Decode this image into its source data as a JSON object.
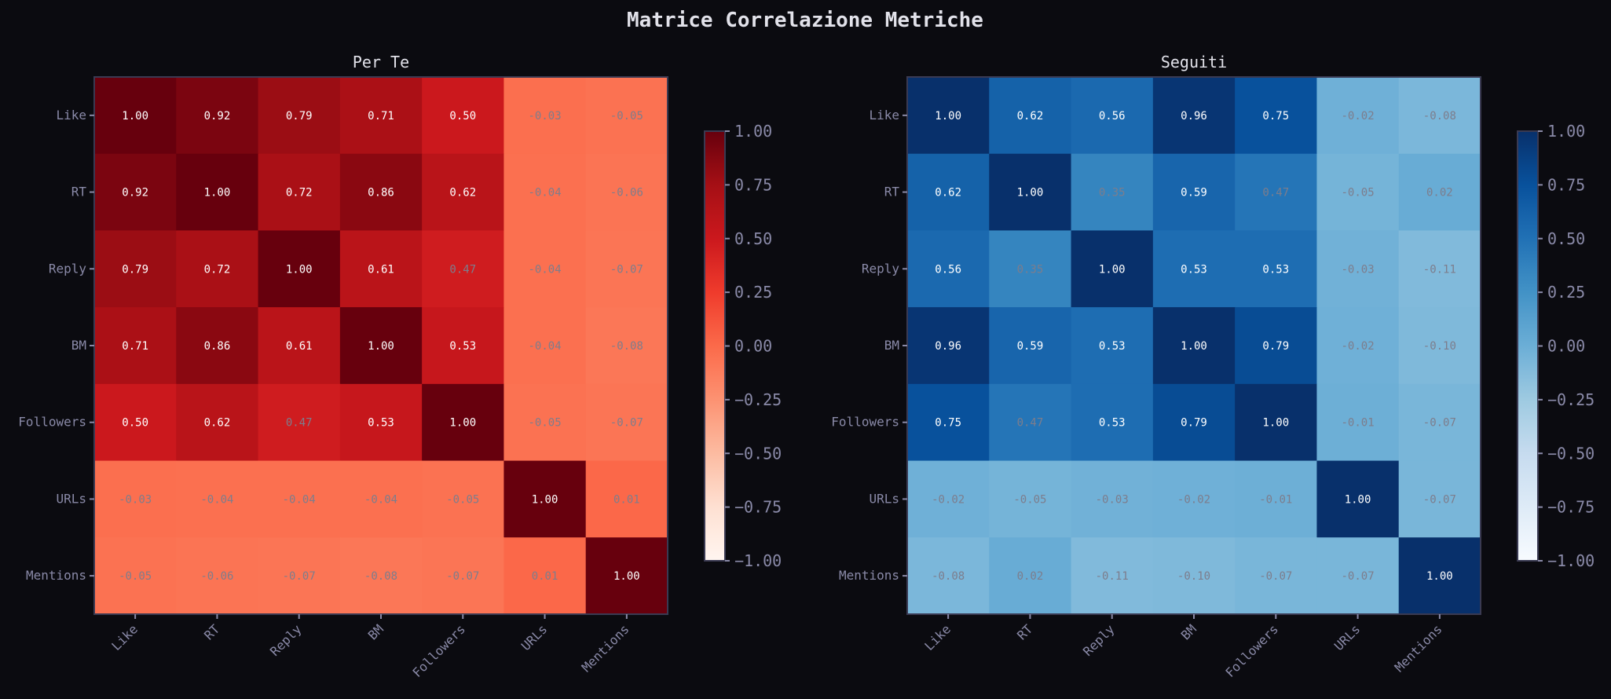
{
  "title": "Matrice Correlazione Metriche",
  "chart_data": [
    {
      "type": "heatmap",
      "title": "Per Te",
      "colormap": "Reds",
      "vmin": -1,
      "vmax": 1,
      "labels": [
        "Like",
        "RT",
        "Reply",
        "BM",
        "Followers",
        "URLs",
        "Mentions"
      ],
      "colorbar_ticks": [
        "1.00",
        "0.75",
        "0.50",
        "0.25",
        "0.00",
        "−0.25",
        "−0.50",
        "−0.75",
        "−1.00"
      ],
      "values": [
        [
          1.0,
          0.92,
          0.79,
          0.71,
          0.5,
          -0.03,
          -0.05
        ],
        [
          0.92,
          1.0,
          0.72,
          0.86,
          0.62,
          -0.04,
          -0.06
        ],
        [
          0.79,
          0.72,
          1.0,
          0.61,
          0.47,
          -0.04,
          -0.07
        ],
        [
          0.71,
          0.86,
          0.61,
          1.0,
          0.53,
          -0.04,
          -0.08
        ],
        [
          0.5,
          0.62,
          0.47,
          0.53,
          1.0,
          -0.05,
          -0.07
        ],
        [
          -0.03,
          -0.04,
          -0.04,
          -0.04,
          -0.05,
          1.0,
          0.01
        ],
        [
          -0.05,
          -0.06,
          -0.07,
          -0.08,
          -0.07,
          0.01,
          1.0
        ]
      ]
    },
    {
      "type": "heatmap",
      "title": "Seguiti",
      "colormap": "Blues",
      "vmin": -1,
      "vmax": 1,
      "labels": [
        "Like",
        "RT",
        "Reply",
        "BM",
        "Followers",
        "URLs",
        "Mentions"
      ],
      "colorbar_ticks": [
        "1.00",
        "0.75",
        "0.50",
        "0.25",
        "0.00",
        "−0.25",
        "−0.50",
        "−0.75",
        "−1.00"
      ],
      "values": [
        [
          1.0,
          0.62,
          0.56,
          0.96,
          0.75,
          -0.02,
          -0.08
        ],
        [
          0.62,
          1.0,
          0.35,
          0.59,
          0.47,
          -0.05,
          0.02
        ],
        [
          0.56,
          0.35,
          1.0,
          0.53,
          0.53,
          -0.03,
          -0.11
        ],
        [
          0.96,
          0.59,
          0.53,
          1.0,
          0.79,
          -0.02,
          -0.1
        ],
        [
          0.75,
          0.47,
          0.53,
          0.79,
          1.0,
          -0.01,
          -0.07
        ],
        [
          -0.02,
          -0.05,
          -0.03,
          -0.02,
          -0.01,
          1.0,
          -0.07
        ],
        [
          -0.08,
          0.02,
          -0.11,
          -0.1,
          -0.07,
          -0.07,
          1.0
        ]
      ]
    }
  ]
}
